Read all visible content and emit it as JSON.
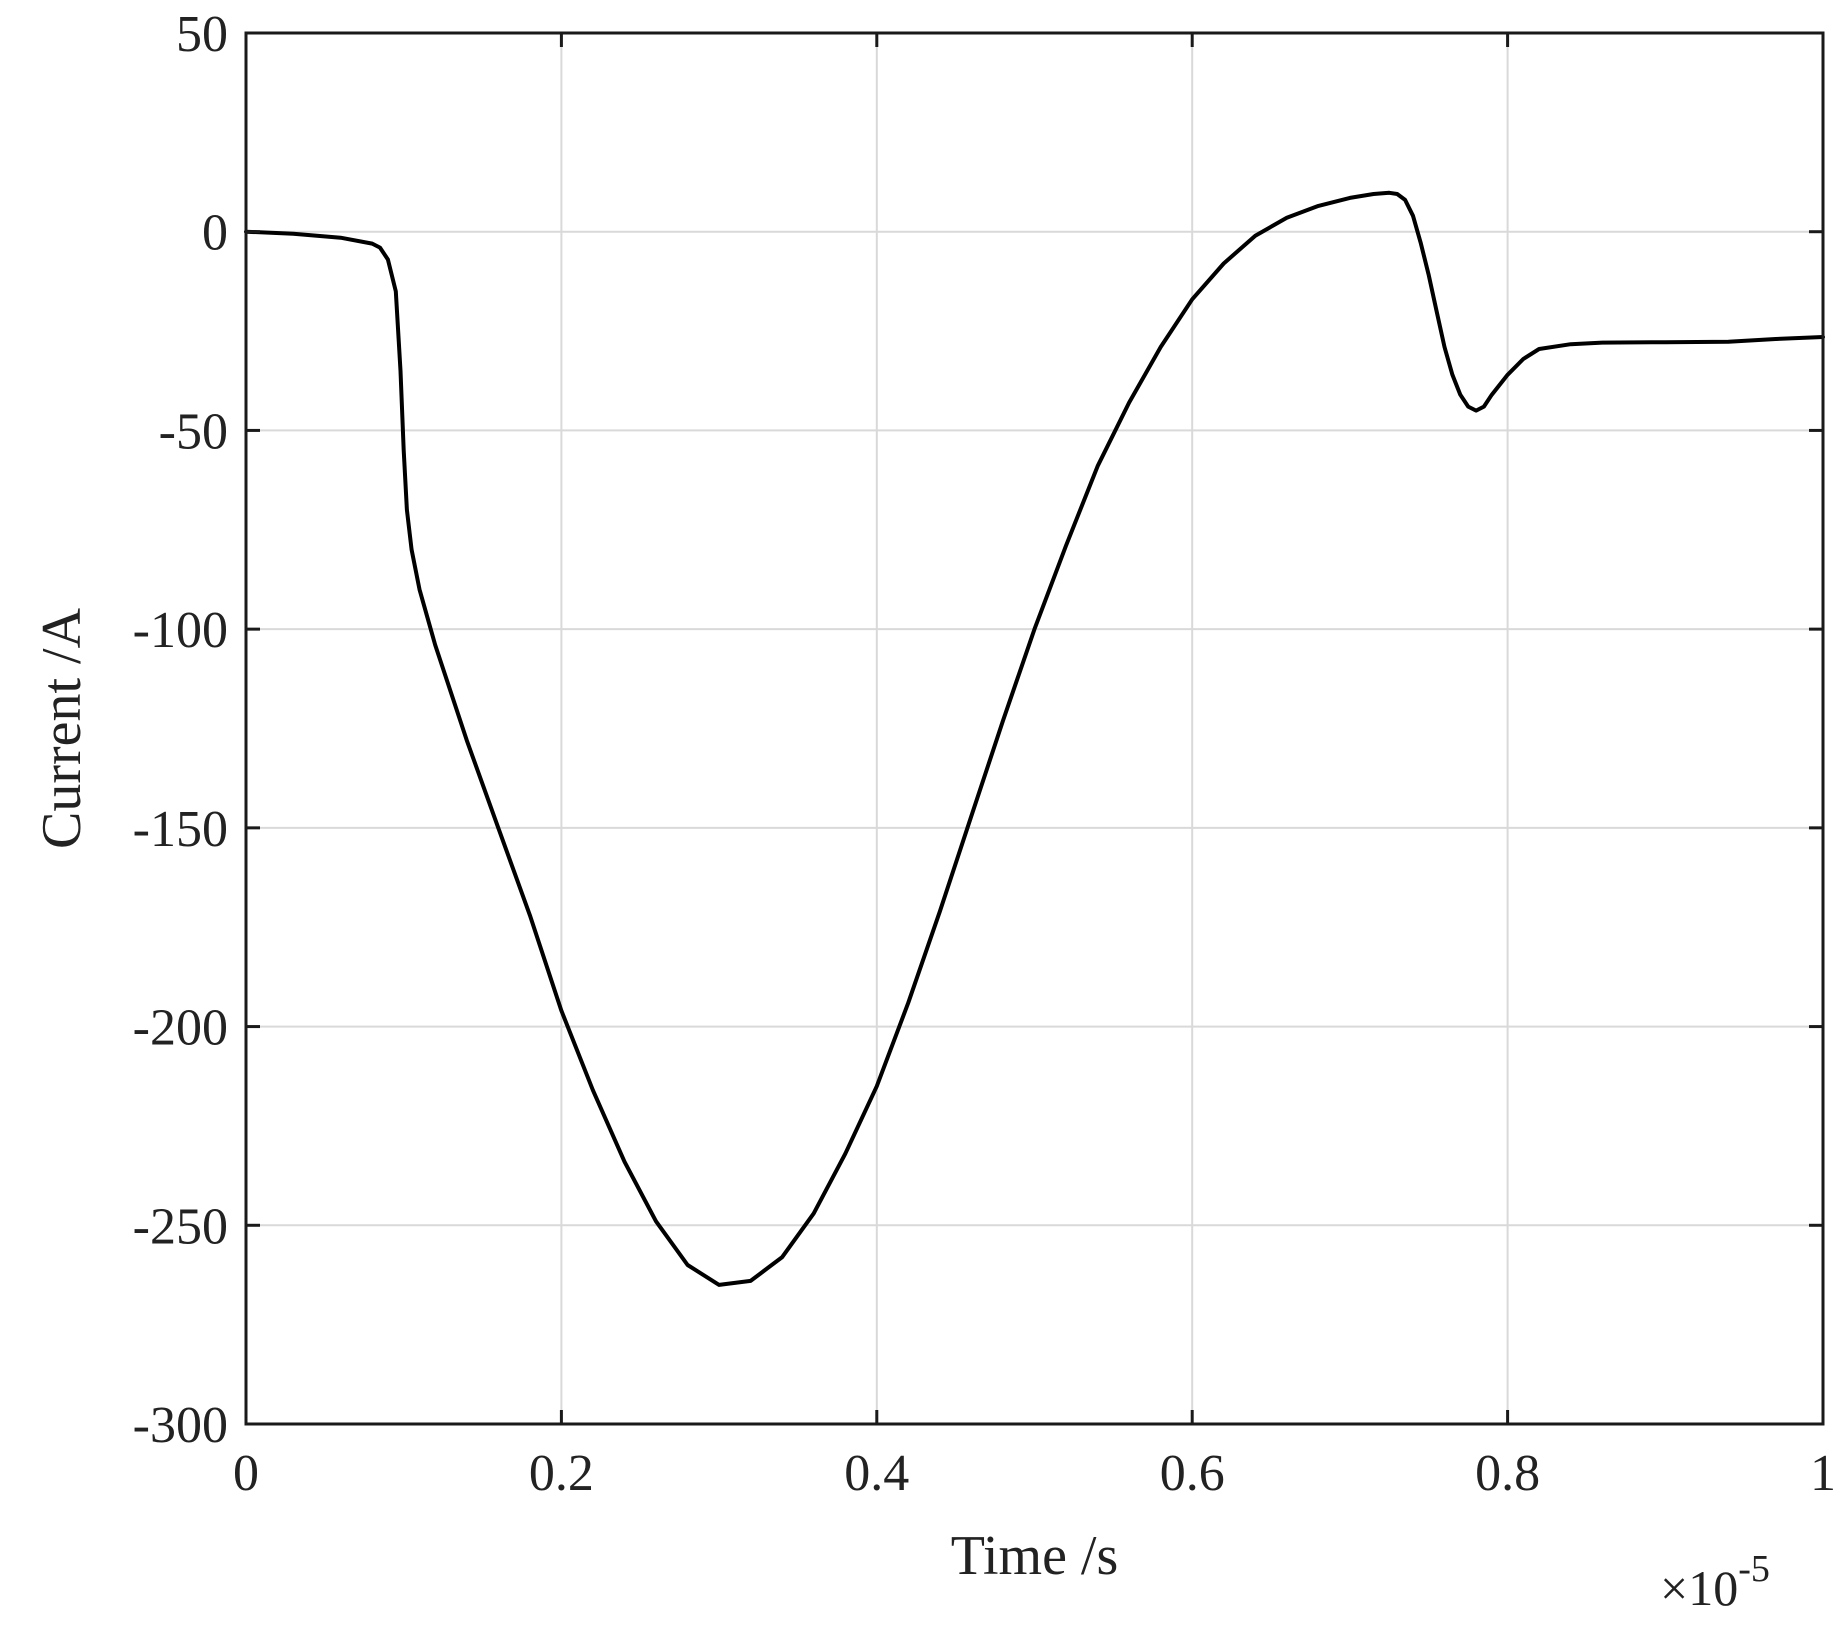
{
  "chart_data": {
    "type": "line",
    "title": "",
    "xlabel": "Time /s",
    "ylabel": "Current /A",
    "x_exponent_label": "×10",
    "x_exponent_power": "-5",
    "xlim": [
      0,
      1
    ],
    "ylim": [
      -300,
      50
    ],
    "x_ticks": [
      0,
      0.2,
      0.4,
      0.6,
      0.8,
      1
    ],
    "x_tick_labels": [
      "0",
      "0.2",
      "0.4",
      "0.6",
      "0.8",
      "1"
    ],
    "y_ticks": [
      50,
      0,
      -50,
      -100,
      -150,
      -200,
      -250,
      -300
    ],
    "y_tick_labels": [
      "50",
      "0",
      "-50",
      "-100",
      "-150",
      "-200",
      "-250",
      "-300"
    ],
    "grid": true,
    "line_color": "#000000",
    "grid_color": "#d9d9d9",
    "series": [
      {
        "points": [
          [
            0,
            0
          ],
          [
            0.03,
            -0.5
          ],
          [
            0.06,
            -1.5
          ],
          [
            0.08,
            -3
          ],
          [
            0.085,
            -4
          ],
          [
            0.09,
            -7
          ],
          [
            0.095,
            -15
          ],
          [
            0.098,
            -35
          ],
          [
            0.1,
            -55
          ],
          [
            0.102,
            -70
          ],
          [
            0.105,
            -80
          ],
          [
            0.11,
            -90
          ],
          [
            0.12,
            -104
          ],
          [
            0.14,
            -128
          ],
          [
            0.16,
            -150
          ],
          [
            0.18,
            -172
          ],
          [
            0.2,
            -196
          ],
          [
            0.22,
            -216
          ],
          [
            0.24,
            -234
          ],
          [
            0.26,
            -249
          ],
          [
            0.28,
            -260
          ],
          [
            0.3,
            -265
          ],
          [
            0.32,
            -264
          ],
          [
            0.34,
            -258
          ],
          [
            0.36,
            -247
          ],
          [
            0.38,
            -232
          ],
          [
            0.4,
            -215
          ],
          [
            0.42,
            -194
          ],
          [
            0.44,
            -171
          ],
          [
            0.46,
            -147
          ],
          [
            0.48,
            -123
          ],
          [
            0.5,
            -100
          ],
          [
            0.52,
            -79
          ],
          [
            0.54,
            -59
          ],
          [
            0.56,
            -43
          ],
          [
            0.58,
            -29
          ],
          [
            0.6,
            -17
          ],
          [
            0.62,
            -8
          ],
          [
            0.64,
            -1
          ],
          [
            0.66,
            3.5
          ],
          [
            0.68,
            6.5
          ],
          [
            0.7,
            8.5
          ],
          [
            0.715,
            9.5
          ],
          [
            0.725,
            9.8
          ],
          [
            0.73,
            9.5
          ],
          [
            0.735,
            8
          ],
          [
            0.74,
            4
          ],
          [
            0.745,
            -3
          ],
          [
            0.75,
            -11
          ],
          [
            0.755,
            -20
          ],
          [
            0.76,
            -29
          ],
          [
            0.765,
            -36
          ],
          [
            0.77,
            -41
          ],
          [
            0.775,
            -44
          ],
          [
            0.78,
            -45
          ],
          [
            0.785,
            -44
          ],
          [
            0.79,
            -41
          ],
          [
            0.8,
            -36
          ],
          [
            0.81,
            -32
          ],
          [
            0.82,
            -29.5
          ],
          [
            0.84,
            -28.3
          ],
          [
            0.86,
            -27.9
          ],
          [
            0.9,
            -27.8
          ],
          [
            0.94,
            -27.7
          ],
          [
            0.97,
            -27
          ],
          [
            1,
            -26.5
          ]
        ]
      }
    ]
  }
}
